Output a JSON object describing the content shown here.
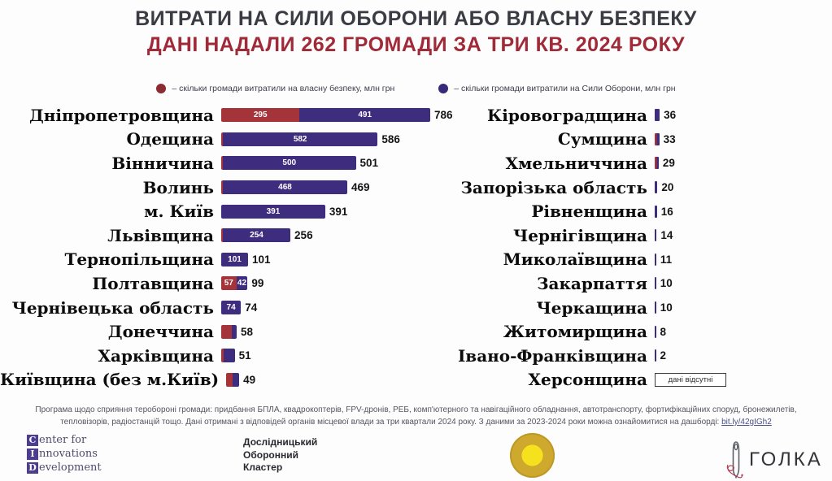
{
  "header": {
    "title": "ВИТРАТИ НА СИЛИ ОБОРОНИ АБО ВЛАСНУ БЕЗПЕКУ",
    "subtitle": "ДАНІ НАДАЛИ 262 ГРОМАДИ ЗА ТРИ КВ. 2024 РОКУ"
  },
  "colors": {
    "title": "#3b3b44",
    "subtitle": "#a02a38",
    "security_bar": "#a4333a",
    "defense_bar": "#3e2c7f",
    "legend_security_dot": "#8d2b33",
    "legend_defense_dot": "#39297a"
  },
  "legend": {
    "security": {
      "icon": "circle",
      "label": "– скільки громади витратили на власну безпеку, млн грн"
    },
    "defense": {
      "icon": "circle",
      "label": "– скільки громади витратили на Сили Оборони, млн грн"
    }
  },
  "chart_data": {
    "type": "bar",
    "orientation": "horizontal",
    "unit": "млн грн",
    "series_names": [
      "власна безпека",
      "Сили Оборони"
    ],
    "legend_position": "top",
    "grid": false,
    "left_rows": [
      {
        "label": "Дніпропетровщина",
        "security": 295,
        "defense": 491,
        "total": 786,
        "show_security_label": true,
        "show_defense_label": true
      },
      {
        "label": "Одещина",
        "security": 4,
        "defense": 582,
        "total": 586,
        "show_security_label": false,
        "show_defense_label": true
      },
      {
        "label": "Вінничина",
        "security": 1,
        "defense": 500,
        "total": 501,
        "show_security_label": false,
        "show_defense_label": true
      },
      {
        "label": "Волинь",
        "security": 1,
        "defense": 468,
        "total": 469,
        "show_security_label": false,
        "show_defense_label": true
      },
      {
        "label": "м. Київ",
        "security": 0,
        "defense": 391,
        "total": 391,
        "show_security_label": false,
        "show_defense_label": true
      },
      {
        "label": "Львівщина",
        "security": 2,
        "defense": 254,
        "total": 256,
        "show_security_label": false,
        "show_defense_label": true
      },
      {
        "label": "Тернопільщина",
        "security": 0,
        "defense": 101,
        "total": 101,
        "show_security_label": false,
        "show_defense_label": true
      },
      {
        "label": "Полтавщина",
        "security": 57,
        "defense": 42,
        "total": 99,
        "show_security_label": true,
        "show_defense_label": true
      },
      {
        "label": "Чернівецька область",
        "security": 0,
        "defense": 74,
        "total": 74,
        "show_security_label": false,
        "show_defense_label": true
      },
      {
        "label": "Донеччина",
        "security": 40,
        "defense": 18,
        "total": 58,
        "show_security_label": false,
        "show_defense_label": false
      },
      {
        "label": "Харківщина",
        "security": 10,
        "defense": 41,
        "total": 51,
        "show_security_label": false,
        "show_defense_label": false
      },
      {
        "label": "Київщина (без м.Київ)",
        "security": 25,
        "defense": 24,
        "total": 49,
        "show_security_label": false,
        "show_defense_label": false
      }
    ],
    "right_rows": [
      {
        "label": "Кіровоградщина",
        "value": 36
      },
      {
        "label": "Сумщина",
        "value": 33,
        "mixed": true
      },
      {
        "label": "Хмельниччина",
        "value": 29,
        "mixed": true
      },
      {
        "label": "Запорізька область",
        "value": 20
      },
      {
        "label": "Рівненщина",
        "value": 16
      },
      {
        "label": "Чернігівщина",
        "value": 14
      },
      {
        "label": "Миколаївщина",
        "value": 11
      },
      {
        "label": "Закарпаття",
        "value": 10
      },
      {
        "label": "Черкащина",
        "value": 10
      },
      {
        "label": "Житомирщина",
        "value": 8
      },
      {
        "label": "Івано-Франківщина",
        "value": 2
      },
      {
        "label": "Херсонщина",
        "value": null,
        "no_data_label": "дані відсутні"
      }
    ]
  },
  "footer": {
    "text": "Програма щодо сприяння теробороні громади: придбання БПЛА, квадрокоптерів, FPV-дронів, РЕБ, комп'ютерного та навігаційного обладнання, автотранспорту, фортифікаційних споруд, бронежилетів, тепловізорів, радіостанцій тощо. Дані отримані з відповідей органів місцевої влади за три квартали 2024 року. З даними за 2023-2024 роки можна ознайомитися на дашборді: ",
    "link": "bit.ly/42gIGh2"
  },
  "logos": {
    "cid": {
      "lines": [
        {
          "initial": "C",
          "rest": "enter for"
        },
        {
          "initial": "I",
          "rest": "nnovations"
        },
        {
          "initial": "D",
          "rest": "evelopment"
        }
      ]
    },
    "cluster": {
      "line1": "Дослідницький",
      "line2": "Оборонний",
      "line3": "Кластер"
    },
    "golka": {
      "text": "ГОЛКА"
    }
  }
}
